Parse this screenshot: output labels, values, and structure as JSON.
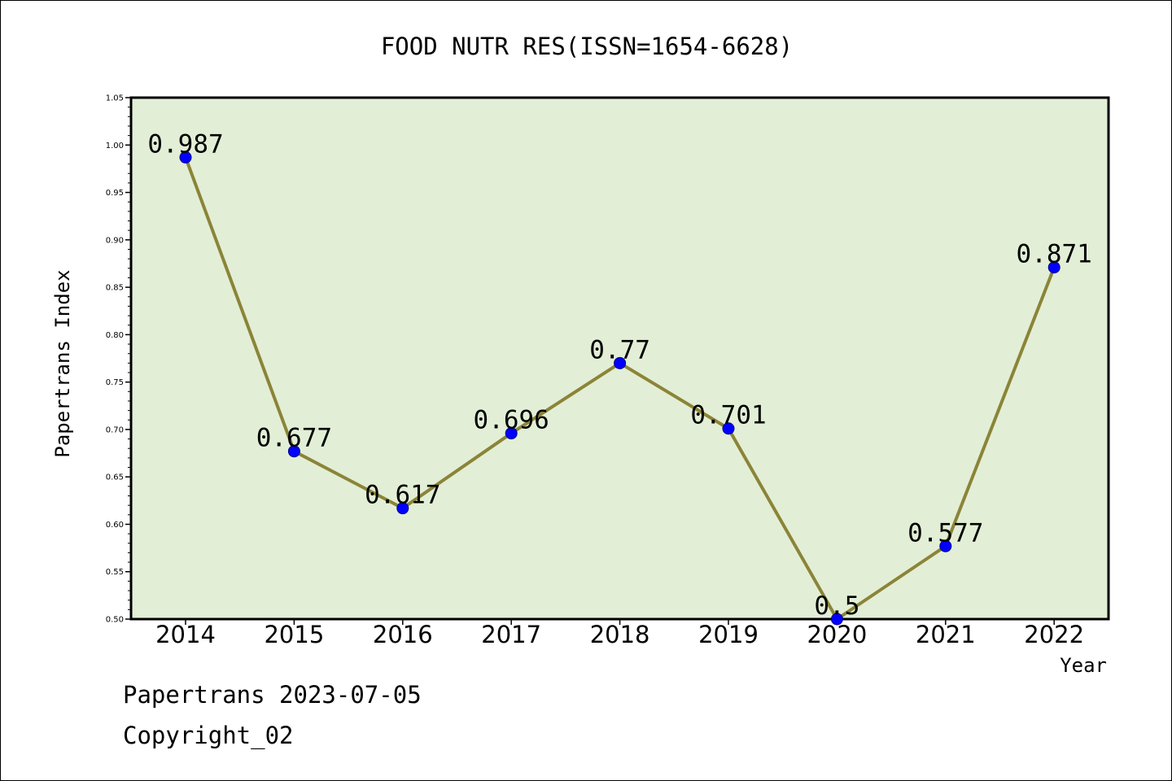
{
  "footer": {
    "source_line": "Papertrans 2023-07-05",
    "copyright_line": "Copyright_02"
  },
  "colors": {
    "plot_background": "#e2efd6",
    "line": "#8b8438",
    "marker": "#0000ff",
    "axis": "#000000"
  },
  "chart_data": {
    "type": "line",
    "title": "FOOD NUTR RES(ISSN=1654-6628)",
    "xlabel": "Year",
    "ylabel": "Papertrans Index",
    "categories": [
      "2014",
      "2015",
      "2016",
      "2017",
      "2018",
      "2019",
      "2020",
      "2021",
      "2022"
    ],
    "series": [
      {
        "values": [
          0.987,
          0.677,
          0.617,
          0.696,
          0.77,
          0.701,
          0.5,
          0.577,
          0.871
        ],
        "labels": [
          "0.987",
          "0.677",
          "0.617",
          "0.696",
          "0.77",
          "0.701",
          "0.5",
          "0.577",
          "0.871"
        ]
      }
    ],
    "ylim": [
      0.5,
      1.05
    ],
    "yticks": [
      "0.50",
      "0.55",
      "0.60",
      "0.65",
      "0.70",
      "0.75",
      "0.80",
      "0.85",
      "0.90",
      "0.95",
      "1.00",
      "1.05"
    ],
    "grid": false,
    "legend": "none"
  }
}
